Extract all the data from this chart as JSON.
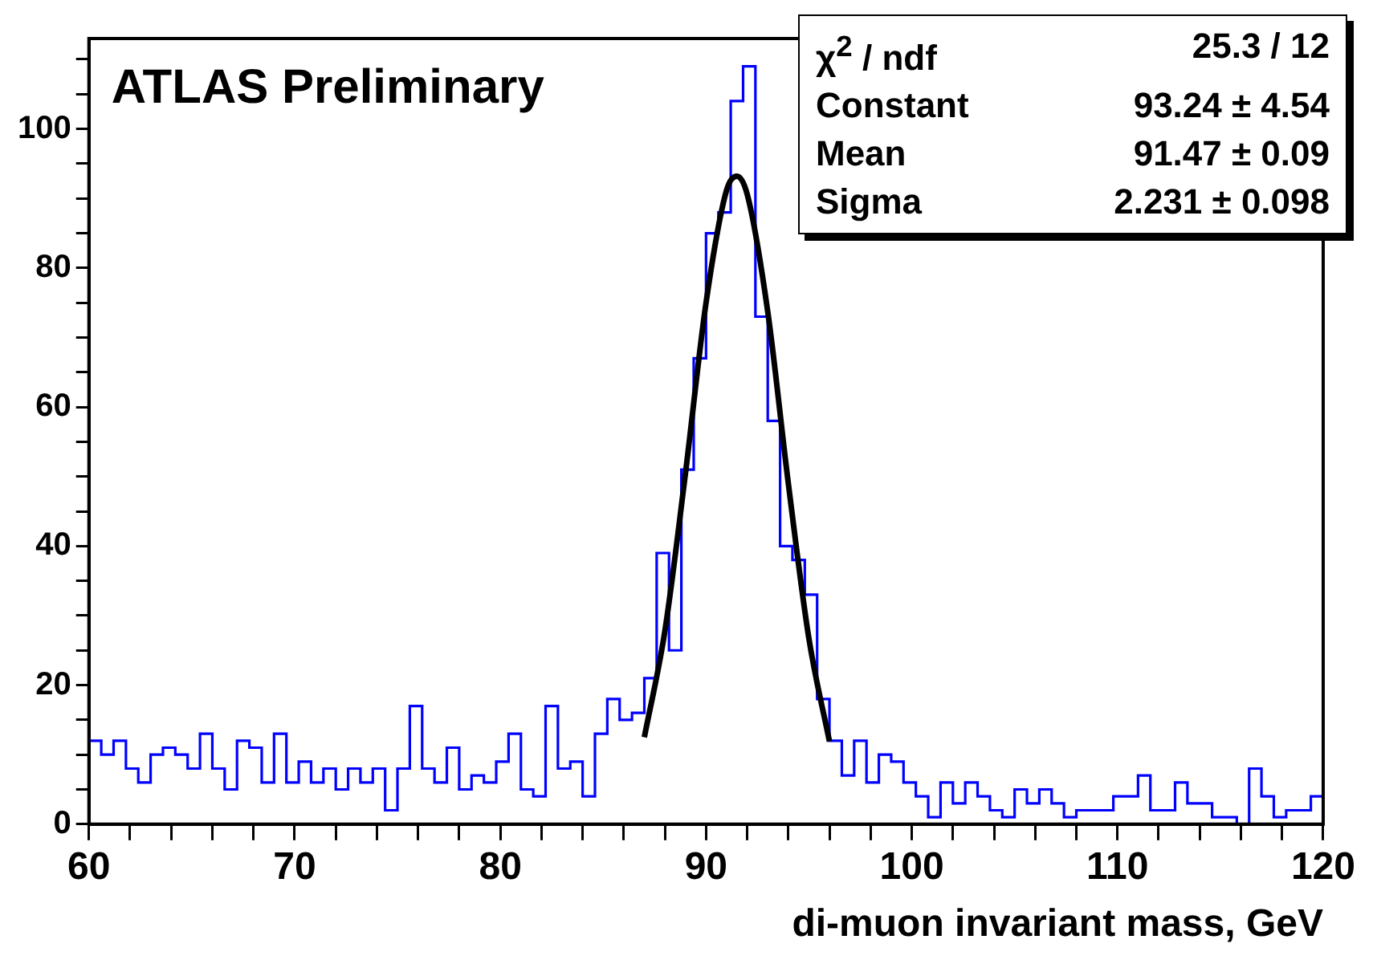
{
  "chart_data": {
    "type": "histogram",
    "title": "ATLAS Preliminary",
    "xlabel": "di-muon invariant mass, GeV",
    "bins": [
      60,
      60.6,
      61.2,
      61.8,
      62.4,
      63,
      63.6,
      64.2,
      64.8,
      65.4,
      66,
      66.6,
      67.2,
      67.8,
      68.4,
      69,
      69.6,
      70.2,
      70.8,
      71.4,
      72,
      72.6,
      73.2,
      73.8,
      74.4,
      75,
      75.6,
      76.2,
      76.8,
      77.4,
      78,
      78.6,
      79.2,
      79.8,
      80.4,
      81,
      81.6,
      82.2,
      82.8,
      83.4,
      84,
      84.6,
      85.2,
      85.8,
      86.4,
      87,
      87.6,
      88.2,
      88.8,
      89.4,
      90,
      90.6,
      91.2,
      91.8,
      92.4,
      93,
      93.6,
      94.2,
      94.8,
      95.4,
      96,
      96.6,
      97.2,
      97.8,
      98.4,
      99,
      99.6,
      100.2,
      100.8,
      101.4,
      102,
      102.6,
      103.2,
      103.8,
      104.4,
      105,
      105.6,
      106.2,
      106.8,
      107.4,
      108,
      108.6,
      109.2,
      109.8,
      110.4,
      111,
      111.6,
      112.2,
      112.8,
      113.4,
      114,
      114.6,
      115.2,
      115.8,
      116.4,
      117,
      117.6,
      118.2,
      118.8,
      119.4,
      120
    ],
    "values": [
      12,
      10,
      12,
      8,
      6,
      10,
      11,
      10,
      8,
      13,
      8,
      5,
      12,
      11,
      6,
      13,
      6,
      9,
      6,
      8,
      5,
      8,
      6,
      8,
      2,
      8,
      17,
      8,
      6,
      11,
      5,
      7,
      6,
      9,
      13,
      5,
      4,
      17,
      8,
      9,
      4,
      13,
      18,
      15,
      16,
      21,
      39,
      25,
      51,
      67,
      85,
      88,
      104,
      109,
      73,
      58,
      40,
      38,
      33,
      18,
      12,
      7,
      12,
      6,
      10,
      9,
      6,
      4,
      1,
      6,
      3,
      6,
      4,
      2,
      1,
      5,
      3,
      5,
      3,
      1,
      2,
      2,
      2,
      4,
      4,
      7,
      2,
      2,
      6,
      3,
      3,
      1,
      1,
      0,
      8,
      4,
      1,
      2,
      2,
      4
    ],
    "color": "#0000ff",
    "series": [
      {
        "type": "line",
        "color": "#000000",
        "x": [
          87,
          88,
          89,
          90,
          91,
          91.5,
          92,
          93,
          94,
          95,
          96
        ],
        "values": [
          12.5,
          27.8,
          50.5,
          75,
          91.2,
          93.2,
          90.6,
          73.7,
          49,
          26.7,
          11.9
        ]
      }
    ],
    "xlim": [
      60,
      120
    ],
    "xticks": [
      60,
      {
        "value": 62,
        "label": null
      },
      {
        "value": 64,
        "label": null
      },
      {
        "value": 66,
        "label": null
      },
      {
        "value": 68,
        "label": null
      },
      70,
      {
        "value": 72,
        "label": null
      },
      {
        "value": 74,
        "label": null
      },
      {
        "value": 76,
        "label": null
      },
      {
        "value": 78,
        "label": null
      },
      80,
      {
        "value": 82,
        "label": null
      },
      {
        "value": 84,
        "label": null
      },
      {
        "value": 86,
        "label": null
      },
      {
        "value": 88,
        "label": null
      },
      90,
      {
        "value": 92,
        "label": null
      },
      {
        "value": 94,
        "label": null
      },
      {
        "value": 96,
        "label": null
      },
      {
        "value": 98,
        "label": null
      },
      100,
      {
        "value": 102,
        "label": null
      },
      {
        "value": 104,
        "label": null
      },
      {
        "value": 106,
        "label": null
      },
      {
        "value": 108,
        "label": null
      },
      110,
      {
        "value": 112,
        "label": null
      },
      {
        "value": 114,
        "label": null
      },
      {
        "value": 116,
        "label": null
      },
      {
        "value": 118,
        "label": null
      },
      120
    ],
    "ylim": [
      0,
      113
    ],
    "yticks": [
      0,
      {
        "value": 5,
        "label": null
      },
      {
        "value": 10,
        "label": null
      },
      {
        "value": 15,
        "label": null
      },
      20,
      {
        "value": 25,
        "label": null
      },
      {
        "value": 30,
        "label": null
      },
      {
        "value": 35,
        "label": null
      },
      40,
      {
        "value": 45,
        "label": null
      },
      {
        "value": 50,
        "label": null
      },
      {
        "value": 55,
        "label": null
      },
      60,
      {
        "value": 65,
        "label": null
      },
      {
        "value": 70,
        "label": null
      },
      {
        "value": 75,
        "label": null
      },
      80,
      {
        "value": 85,
        "label": null
      },
      {
        "value": 90,
        "label": null
      },
      {
        "value": 95,
        "label": null
      },
      100,
      {
        "value": 105,
        "label": null
      },
      {
        "value": 110,
        "label": null
      }
    ],
    "annotations": [
      "χ$^{2}$ / ndf",
      "25.3 / 12",
      "Constant",
      "93.24 ± 4.54",
      "Mean",
      "91.47 ± 0.09",
      "Sigma",
      "2.231 ± 0.098"
    ],
    "legend": false,
    "grid": false
  }
}
